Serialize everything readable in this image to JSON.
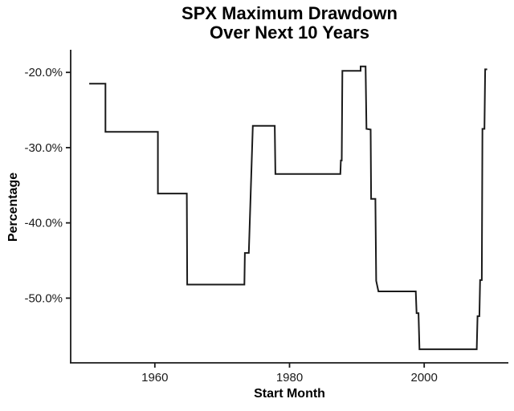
{
  "chart": {
    "title_line1": "SPX Maximum Drawdown",
    "title_line2": "Over Next 10 Years",
    "x_axis_label": "Start Month",
    "y_axis_label": "Percentage"
  },
  "chart_data": {
    "type": "line",
    "subtype": "step",
    "title": "SPX Maximum Drawdown Over Next 10 Years",
    "xlabel": "Start Month",
    "ylabel": "Percentage",
    "xlim": [
      1947.5,
      2012.5
    ],
    "ylim": [
      -58.6,
      -17.1
    ],
    "grid": false,
    "legend": "none",
    "background": "#ffffff",
    "line_color": "#1a1a1a",
    "axis_color": "#1a1a1a",
    "x_ticks": [
      {
        "value": 1960,
        "label": "1960"
      },
      {
        "value": 1980,
        "label": "1980"
      },
      {
        "value": 2000,
        "label": "2000"
      }
    ],
    "y_ticks": [
      {
        "value": -20,
        "label": "-20.0%"
      },
      {
        "value": -30,
        "label": "-30.0%"
      },
      {
        "value": -40,
        "label": "-40.0%"
      },
      {
        "value": -50,
        "label": "-50.0%"
      }
    ],
    "series": [
      {
        "name": "max-drawdown-next-10-years",
        "points": [
          [
            1950.25,
            -21.5
          ],
          [
            1952.67,
            -21.5
          ],
          [
            1952.67,
            -27.9
          ],
          [
            1960.45,
            -27.9
          ],
          [
            1960.45,
            -36.1
          ],
          [
            1964.75,
            -36.1
          ],
          [
            1964.8,
            -48.2
          ],
          [
            1973.3,
            -48.2
          ],
          [
            1973.37,
            -44.0
          ],
          [
            1973.95,
            -44.0
          ],
          [
            1974.55,
            -27.1
          ],
          [
            1977.8,
            -27.1
          ],
          [
            1977.9,
            -33.5
          ],
          [
            1987.55,
            -33.5
          ],
          [
            1987.62,
            -31.7
          ],
          [
            1987.75,
            -31.7
          ],
          [
            1987.85,
            -19.8
          ],
          [
            1990.55,
            -19.8
          ],
          [
            1990.55,
            -19.2
          ],
          [
            1991.3,
            -19.2
          ],
          [
            1991.42,
            -27.5
          ],
          [
            1992.05,
            -27.6
          ],
          [
            1992.12,
            -36.8
          ],
          [
            1992.75,
            -36.8
          ],
          [
            1992.87,
            -47.7
          ],
          [
            1993.2,
            -49.1
          ],
          [
            1998.75,
            -49.1
          ],
          [
            1998.87,
            -52.0
          ],
          [
            1999.15,
            -52.0
          ],
          [
            1999.3,
            -56.8
          ],
          [
            2007.8,
            -56.8
          ],
          [
            2007.92,
            -52.4
          ],
          [
            2008.2,
            -52.4
          ],
          [
            2008.3,
            -47.6
          ],
          [
            2008.55,
            -47.6
          ],
          [
            2008.65,
            -27.5
          ],
          [
            2008.95,
            -27.5
          ],
          [
            2009.05,
            -19.6
          ],
          [
            2009.35,
            -19.6
          ]
        ]
      }
    ]
  }
}
